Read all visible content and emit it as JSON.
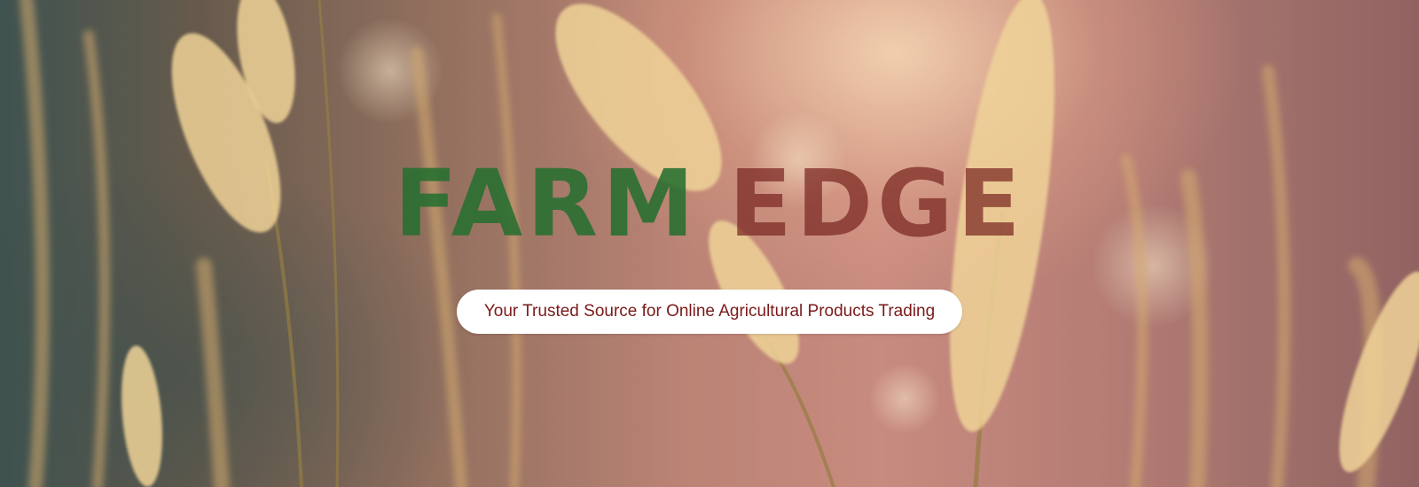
{
  "banner": {
    "title_word_1": "FARM",
    "title_word_2": "EDGE",
    "tagline": "Your Trusted Source for Online Agricultural Products Trading",
    "background_image": "sunlit-wheat-grass-photo"
  },
  "colors": {
    "title_word_1": "#266e30",
    "title_word_2": "#78261f",
    "tagline_text": "#7a1a1a",
    "tagline_pill": "#ffffff"
  }
}
